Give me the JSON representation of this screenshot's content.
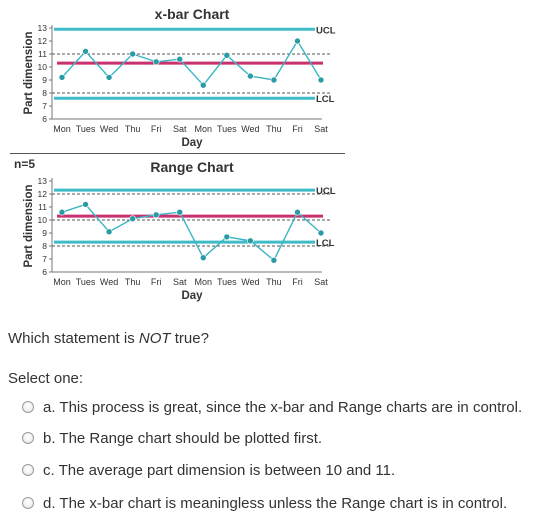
{
  "figure": {
    "divider_label": "n=5"
  },
  "chart_data": [
    {
      "type": "line",
      "title": "x-bar Chart",
      "xlabel": "Day",
      "ylabel": "Part dimension",
      "categories": [
        "Mon",
        "Tues",
        "Wed",
        "Thu",
        "Fri",
        "Sat",
        "Mon",
        "Tues",
        "Wed",
        "Thu",
        "Fri",
        "Sat"
      ],
      "ylim": [
        6,
        13
      ],
      "yticks": [
        6,
        7,
        8,
        9,
        10,
        11,
        12,
        13
      ],
      "values": [
        9.2,
        11.2,
        9.2,
        11.0,
        10.4,
        10.6,
        8.6,
        10.9,
        9.3,
        9.0,
        12.0,
        9.0
      ],
      "ucl": 12.9,
      "lcl": 7.6,
      "center": 10.3,
      "dashed_lines": [
        11.0,
        8.0
      ],
      "ucl_label": "UCL",
      "lcl_label": "LCL",
      "colors": {
        "line": "#3ab5c2",
        "marker": "#2a9aa5",
        "limits": "#3fbcc8",
        "center": "#c9306e"
      }
    },
    {
      "type": "line",
      "title": "Range  Chart",
      "xlabel": "Day",
      "ylabel": "Part dimension",
      "categories": [
        "Mon",
        "Tues",
        "Wed",
        "Thu",
        "Fri",
        "Sat",
        "Mon",
        "Tues",
        "Wed",
        "Thu",
        "Fri",
        "Sat"
      ],
      "ylim": [
        6,
        13
      ],
      "yticks": [
        6,
        7,
        8,
        9,
        10,
        11,
        12,
        13
      ],
      "values": [
        10.6,
        11.2,
        9.1,
        10.1,
        10.4,
        10.6,
        7.1,
        8.7,
        8.4,
        6.9,
        10.6,
        9.0
      ],
      "ucl": 12.3,
      "lcl": 8.3,
      "center": 10.3,
      "dashed_lines": [
        12.0,
        10.0,
        8.0
      ],
      "ucl_label": "UCL",
      "lcl_label": "LCL",
      "colors": {
        "line": "#3ab5c2",
        "marker": "#2a9aa5",
        "limits": "#3fbcc8",
        "center": "#c9306e"
      }
    }
  ],
  "question": {
    "prefix": "Which statement is ",
    "emphasis": "NOT",
    "suffix": " true?"
  },
  "select_label": "Select one:",
  "options": [
    {
      "text": "a. This process is great, since the x-bar and Range charts are in control."
    },
    {
      "text": "b. The Range chart should be plotted first."
    },
    {
      "text": "c. The average part dimension is between 10 and 11."
    },
    {
      "text": "d. The x-bar chart is meaningless unless the Range chart is in control."
    }
  ]
}
